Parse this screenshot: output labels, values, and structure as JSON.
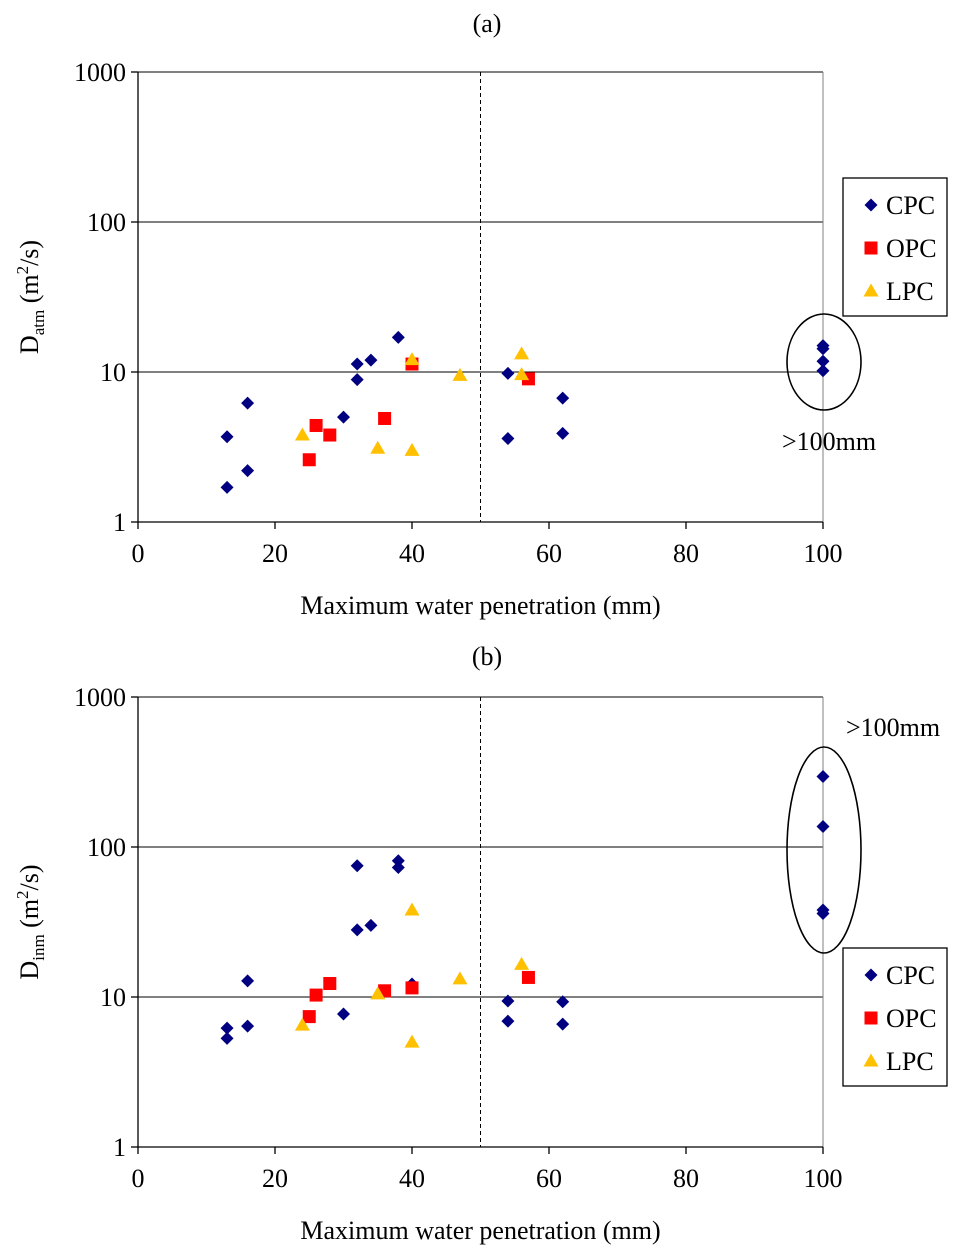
{
  "chart_data": [
    {
      "panel_label": "(a)",
      "type": "scatter",
      "ylabel_main": "D",
      "ylabel_sub": "atm",
      "ylabel_unit_pre": " (m",
      "ylabel_unit_sup": "2",
      "ylabel_unit_post": "/s)",
      "xlabel": "Maximum water penetration (mm)",
      "xlim": [
        0,
        100
      ],
      "ylim": [
        1,
        1000
      ],
      "yscale": "log",
      "xticks": [
        "0",
        "20",
        "40",
        "60",
        "80",
        "100"
      ],
      "yticks": [
        "1",
        "10",
        "100",
        "1000"
      ],
      "grid": "horizontal",
      "reference_line_x": 50,
      "legend_position": "right",
      "annotation": ">100mm",
      "series": [
        {
          "name": "CPC",
          "marker": "diamond",
          "color": "#000080",
          "points": [
            [
              13,
              1.7
            ],
            [
              13,
              3.7
            ],
            [
              16,
              2.2
            ],
            [
              16,
              6.2
            ],
            [
              30,
              5.0
            ],
            [
              32,
              8.9
            ],
            [
              32,
              11.3
            ],
            [
              34,
              12.0
            ],
            [
              38,
              17.0
            ],
            [
              54,
              3.6
            ],
            [
              54,
              9.8
            ],
            [
              62,
              3.9
            ],
            [
              62,
              6.7
            ],
            [
              100,
              10.2
            ],
            [
              100,
              11.8
            ],
            [
              100,
              14.3
            ],
            [
              100,
              15.0
            ]
          ]
        },
        {
          "name": "OPC",
          "marker": "square",
          "color": "#ff0000",
          "points": [
            [
              25,
              2.6
            ],
            [
              26,
              4.4
            ],
            [
              28,
              3.8
            ],
            [
              36,
              4.9
            ],
            [
              40,
              11.3
            ],
            [
              57,
              9.0
            ]
          ]
        },
        {
          "name": "LPC",
          "marker": "triangle",
          "color": "#ffc000",
          "points": [
            [
              24,
              3.8
            ],
            [
              35,
              3.1
            ],
            [
              40,
              3.0
            ],
            [
              40,
              12.1
            ],
            [
              47,
              9.5
            ],
            [
              56,
              13.2
            ],
            [
              56,
              9.6
            ]
          ]
        }
      ]
    },
    {
      "panel_label": "(b)",
      "type": "scatter",
      "ylabel_main": "D",
      "ylabel_sub": "inm",
      "ylabel_unit_pre": " (m",
      "ylabel_unit_sup": "2",
      "ylabel_unit_post": "/s)",
      "xlabel": "Maximum water penetration (mm)",
      "xlim": [
        0,
        100
      ],
      "ylim": [
        1,
        1000
      ],
      "yscale": "log",
      "xticks": [
        "0",
        "20",
        "40",
        "60",
        "80",
        "100"
      ],
      "yticks": [
        "1",
        "10",
        "100",
        "1000"
      ],
      "grid": "horizontal",
      "reference_line_x": 50,
      "legend_position": "right",
      "annotation": ">100mm",
      "series": [
        {
          "name": "CPC",
          "marker": "diamond",
          "color": "#000080",
          "points": [
            [
              13,
              5.3
            ],
            [
              13,
              6.2
            ],
            [
              16,
              6.4
            ],
            [
              16,
              12.8
            ],
            [
              30,
              7.7
            ],
            [
              32,
              28.0
            ],
            [
              32,
              75.0
            ],
            [
              34,
              30.0
            ],
            [
              38,
              73.0
            ],
            [
              38,
              81.0
            ],
            [
              40,
              12.2
            ],
            [
              54,
              6.9
            ],
            [
              54,
              9.4
            ],
            [
              62,
              6.6
            ],
            [
              62,
              9.3
            ],
            [
              100,
              36.0
            ],
            [
              100,
              38.0
            ],
            [
              100,
              137.0
            ],
            [
              100,
              295.0
            ]
          ]
        },
        {
          "name": "OPC",
          "marker": "square",
          "color": "#ff0000",
          "points": [
            [
              25,
              7.4
            ],
            [
              26,
              10.3
            ],
            [
              28,
              12.3
            ],
            [
              36,
              11.0
            ],
            [
              40,
              11.5
            ],
            [
              57,
              13.5
            ]
          ]
        },
        {
          "name": "LPC",
          "marker": "triangle",
          "color": "#ffc000",
          "points": [
            [
              24,
              6.5
            ],
            [
              35,
              10.5
            ],
            [
              40,
              38.0
            ],
            [
              40,
              5.0
            ],
            [
              47,
              13.2
            ],
            [
              56,
              16.5
            ]
          ]
        }
      ]
    }
  ]
}
